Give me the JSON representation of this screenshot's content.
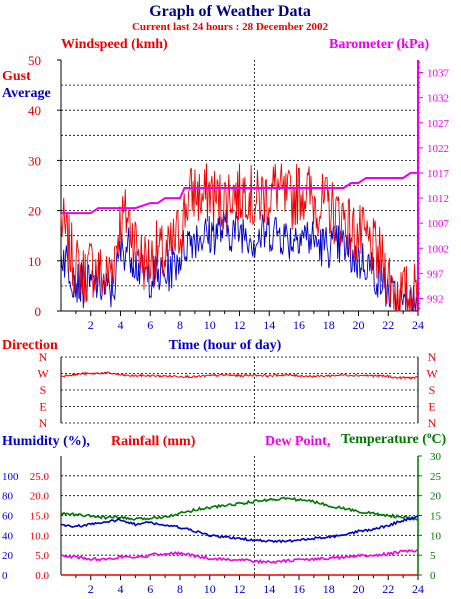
{
  "header": {
    "title": "Graph of Weather Data",
    "subtitle": "Current last 24 hours : 28 December 2002"
  },
  "colors": {
    "red": "#ee0000",
    "blue": "#0000cc",
    "magenta": "#ee00ee",
    "green": "#007700",
    "title_blue": "#000080"
  },
  "chart_data": [
    {
      "type": "line",
      "labels": {
        "windspeed": "Windspeed (kmh)",
        "barometer": "Barometer (kPa)",
        "gust": "Gust",
        "average": "Average",
        "xlabel": "Time (hour of day)"
      },
      "x_ticks": [
        "2",
        "4",
        "6",
        "8",
        "10",
        "12",
        "14",
        "16",
        "18",
        "20",
        "22",
        "24"
      ],
      "xlim": [
        0,
        24
      ],
      "y_left_ticks": [
        "0",
        "10",
        "20",
        "30",
        "40",
        "50"
      ],
      "ylim_left": [
        0,
        50
      ],
      "y_right_ticks": [
        "992",
        "997",
        "1002",
        "1007",
        "1012",
        "1017",
        "1022",
        "1027",
        "1032",
        "1037"
      ],
      "ylim_right": [
        989.5,
        1039.5
      ],
      "grid": "dashed horizontal",
      "marker_hour": 13,
      "series": [
        {
          "name": "Gust",
          "color": "#ee0000",
          "x": [
            0,
            0.5,
            1,
            1.5,
            2,
            2.5,
            3,
            3.5,
            4,
            4.5,
            5,
            5.5,
            6,
            6.5,
            7,
            7.5,
            8,
            8.5,
            9,
            9.5,
            10,
            10.5,
            11,
            11.5,
            12,
            12.5,
            13,
            13.5,
            14,
            14.5,
            15,
            15.5,
            16,
            16.5,
            17,
            17.5,
            18,
            18.5,
            19,
            19.5,
            20,
            20.5,
            21,
            21.5,
            22,
            22.5,
            23,
            23.5,
            24
          ],
          "values": [
            18,
            13,
            9,
            7,
            9,
            8,
            6,
            10,
            18,
            19,
            14,
            10,
            10,
            12,
            10,
            13,
            16,
            22,
            24,
            22,
            24,
            22,
            22,
            24,
            23,
            25,
            21,
            23,
            23,
            25,
            22,
            22,
            24,
            24,
            22,
            21,
            21,
            19,
            19,
            16,
            15,
            14,
            12,
            10,
            7,
            4,
            3,
            3,
            4
          ],
          "range": [
            0,
            31
          ]
        },
        {
          "name": "Average",
          "color": "#0000cc",
          "x": [
            0,
            0.5,
            1,
            1.5,
            2,
            2.5,
            3,
            3.5,
            4,
            4.5,
            5,
            5.5,
            6,
            6.5,
            7,
            7.5,
            8,
            8.5,
            9,
            9.5,
            10,
            10.5,
            11,
            11.5,
            12,
            12.5,
            13,
            13.5,
            14,
            14.5,
            15,
            15.5,
            16,
            16.5,
            17,
            17.5,
            18,
            18.5,
            19,
            19.5,
            20,
            20.5,
            21,
            21.5,
            22,
            22.5,
            23,
            23.5,
            24
          ],
          "values": [
            12,
            9,
            6,
            5,
            5,
            6,
            4,
            4,
            12,
            13,
            10,
            7,
            7,
            7,
            7,
            9,
            11,
            14,
            15,
            15,
            15,
            16,
            16,
            16,
            16,
            16,
            14,
            15,
            16,
            16,
            15,
            14,
            16,
            15,
            14,
            13,
            13,
            13,
            13,
            11,
            10,
            10,
            8,
            6,
            4,
            2,
            1,
            1,
            2
          ],
          "range": [
            0,
            22
          ]
        },
        {
          "name": "Barometer",
          "color": "#ee00ee",
          "axis": "right",
          "x": [
            0,
            1,
            2,
            2.5,
            3,
            4,
            5,
            6,
            6.5,
            7,
            8,
            8.3,
            10,
            12,
            14,
            16,
            17,
            18,
            19,
            19.5,
            20,
            20.5,
            21,
            22,
            23,
            23.5,
            24
          ],
          "values": [
            1009,
            1009,
            1009,
            1010,
            1010,
            1010,
            1010,
            1011,
            1011,
            1012,
            1012,
            1014,
            1014,
            1014,
            1014,
            1014,
            1014,
            1014,
            1014,
            1015,
            1015,
            1016,
            1016,
            1016,
            1016,
            1017,
            1017
          ]
        }
      ]
    },
    {
      "type": "line",
      "labels": {
        "title": "Direction"
      },
      "y_ticks": [
        "N",
        "W",
        "S",
        "E",
        "N"
      ],
      "series": [
        {
          "name": "Direction",
          "color": "#ee0000",
          "x": [
            0,
            0.5,
            1,
            1.5,
            2,
            2.5,
            3,
            3.5,
            4,
            4.5,
            5,
            6,
            7,
            8,
            9,
            10,
            11,
            12,
            13,
            14,
            15,
            16,
            17,
            18,
            19,
            20,
            21,
            22,
            22.5,
            23,
            24
          ],
          "values": [
            255,
            262,
            264,
            270,
            268,
            272,
            273,
            270,
            262,
            258,
            258,
            258,
            256,
            255,
            252,
            258,
            262,
            258,
            262,
            258,
            262,
            258,
            255,
            258,
            262,
            260,
            258,
            255,
            247,
            247,
            247
          ]
        }
      ]
    },
    {
      "type": "line",
      "labels": {
        "humidity": "Humidity (%),",
        "rainfall": "Rainfall (mm)",
        "dewpoint": "Dew Point,",
        "temperature": "Temperature (",
        "deg": "o",
        "temp_unit": "C)"
      },
      "x_ticks": [
        "2",
        "4",
        "6",
        "8",
        "10",
        "12",
        "14",
        "16",
        "18",
        "20",
        "22",
        "24"
      ],
      "y_humidity_ticks": [
        "0",
        "20",
        "40",
        "60",
        "80",
        "100"
      ],
      "y_rain_ticks": [
        "0.0",
        "5.0",
        "10.0",
        "15.0",
        "20.0",
        "25.0"
      ],
      "y_temp_ticks": [
        "0",
        "5",
        "10",
        "15",
        "20",
        "25",
        "30"
      ],
      "series": [
        {
          "name": "Temperature",
          "color": "#007700",
          "x": [
            0,
            1,
            2,
            3,
            4,
            5,
            6,
            7,
            8,
            9,
            10,
            11,
            12,
            13,
            14,
            15,
            16,
            17,
            18,
            19,
            20,
            21,
            22,
            23,
            24
          ],
          "values": [
            15.5,
            15.2,
            14.8,
            14.5,
            14.5,
            14,
            14.3,
            14.8,
            15.5,
            16.5,
            17,
            17.5,
            18,
            18.5,
            19,
            19.3,
            19,
            18.5,
            17.5,
            16.8,
            16,
            15.5,
            15,
            14.5,
            14
          ]
        },
        {
          "name": "Humidity",
          "color": "#0000cc",
          "x": [
            0,
            1,
            2,
            3,
            4,
            5,
            6,
            7,
            8,
            9,
            10,
            11,
            12,
            13,
            14,
            15,
            16,
            17,
            18,
            19,
            20,
            21,
            22,
            23,
            24
          ],
          "values": [
            50,
            49,
            51,
            53,
            56,
            51,
            53,
            50,
            48,
            44,
            40,
            38,
            37,
            35,
            34,
            34,
            35,
            37,
            38,
            40,
            44,
            46,
            50,
            55,
            59
          ]
        },
        {
          "name": "Dew Point",
          "color": "#ee00ee",
          "x": [
            0,
            1,
            2,
            3,
            4,
            5,
            6,
            7,
            8,
            9,
            10,
            11,
            12,
            13,
            14,
            15,
            16,
            17,
            18,
            19,
            20,
            21,
            22,
            23,
            24
          ],
          "values": [
            5,
            4.5,
            4,
            4,
            4.5,
            4.2,
            5,
            5.5,
            5.5,
            4.8,
            4.2,
            4,
            3.8,
            3.5,
            3.2,
            3.5,
            3.8,
            4,
            4.2,
            4.5,
            4.8,
            5,
            5.3,
            6,
            6
          ]
        },
        {
          "name": "Rainfall",
          "color": "#ee0000",
          "x": [
            0,
            24
          ],
          "values": [
            0,
            0
          ]
        }
      ]
    }
  ]
}
